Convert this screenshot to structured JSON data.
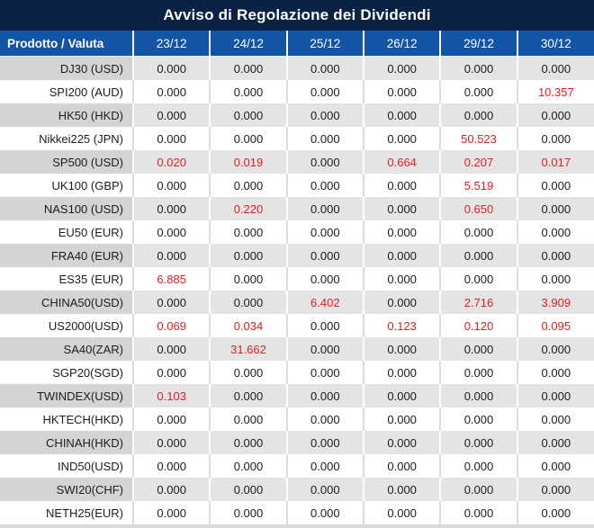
{
  "title": "Avviso di Regolazione dei Dividendi",
  "colors": {
    "title_bar_bg": "#0a2244",
    "header_bg": "#1254a6",
    "header_text": "#ffffff",
    "stripe_product_bg": "#d4d4d4",
    "stripe_cell_bg": "#e4e4e4",
    "plain_row_bg": "#ffffff",
    "value_text": "#1c1c1c",
    "nonzero_value_text": "#e02020",
    "grid_line_light": "#dcdcdc",
    "grid_line_white": "#ffffff"
  },
  "table": {
    "product_header": "Prodotto / Valuta",
    "date_headers": [
      "23/12",
      "24/12",
      "25/12",
      "26/12",
      "29/12",
      "30/12"
    ],
    "zero_value": "0.000",
    "rows": [
      {
        "product": "DJ30 (USD)",
        "values": [
          "0.000",
          "0.000",
          "0.000",
          "0.000",
          "0.000",
          "0.000"
        ]
      },
      {
        "product": "SPI200 (AUD)",
        "values": [
          "0.000",
          "0.000",
          "0.000",
          "0.000",
          "0.000",
          "10.357"
        ]
      },
      {
        "product": "HK50 (HKD)",
        "values": [
          "0.000",
          "0.000",
          "0.000",
          "0.000",
          "0.000",
          "0.000"
        ]
      },
      {
        "product": "Nikkei225 (JPN)",
        "values": [
          "0.000",
          "0.000",
          "0.000",
          "0.000",
          "50.523",
          "0.000"
        ]
      },
      {
        "product": "SP500 (USD)",
        "values": [
          "0.020",
          "0.019",
          "0.000",
          "0.664",
          "0.207",
          "0.017"
        ]
      },
      {
        "product": "UK100 (GBP)",
        "values": [
          "0.000",
          "0.000",
          "0.000",
          "0.000",
          "5.519",
          "0.000"
        ]
      },
      {
        "product": "NAS100 (USD)",
        "values": [
          "0.000",
          "0.220",
          "0.000",
          "0.000",
          "0.650",
          "0.000"
        ]
      },
      {
        "product": "EU50 (EUR)",
        "values": [
          "0.000",
          "0.000",
          "0.000",
          "0.000",
          "0.000",
          "0.000"
        ]
      },
      {
        "product": "FRA40 (EUR)",
        "values": [
          "0.000",
          "0.000",
          "0.000",
          "0.000",
          "0.000",
          "0.000"
        ]
      },
      {
        "product": "ES35 (EUR)",
        "values": [
          "6.885",
          "0.000",
          "0.000",
          "0.000",
          "0.000",
          "0.000"
        ]
      },
      {
        "product": "CHINA50(USD)",
        "values": [
          "0.000",
          "0.000",
          "6.402",
          "0.000",
          "2.716",
          "3.909"
        ]
      },
      {
        "product": "US2000(USD)",
        "values": [
          "0.069",
          "0.034",
          "0.000",
          "0.123",
          "0.120",
          "0.095"
        ]
      },
      {
        "product": "SA40(ZAR)",
        "values": [
          "0.000",
          "31.662",
          "0.000",
          "0.000",
          "0.000",
          "0.000"
        ]
      },
      {
        "product": "SGP20(SGD)",
        "values": [
          "0.000",
          "0.000",
          "0.000",
          "0.000",
          "0.000",
          "0.000"
        ]
      },
      {
        "product": "TWINDEX(USD)",
        "values": [
          "0.103",
          "0.000",
          "0.000",
          "0.000",
          "0.000",
          "0.000"
        ]
      },
      {
        "product": "HKTECH(HKD)",
        "values": [
          "0.000",
          "0.000",
          "0.000",
          "0.000",
          "0.000",
          "0.000"
        ]
      },
      {
        "product": "CHINAH(HKD)",
        "values": [
          "0.000",
          "0.000",
          "0.000",
          "0.000",
          "0.000",
          "0.000"
        ]
      },
      {
        "product": "IND50(USD)",
        "values": [
          "0.000",
          "0.000",
          "0.000",
          "0.000",
          "0.000",
          "0.000"
        ]
      },
      {
        "product": "SWI20(CHF)",
        "values": [
          "0.000",
          "0.000",
          "0.000",
          "0.000",
          "0.000",
          "0.000"
        ]
      },
      {
        "product": "NETH25(EUR)",
        "values": [
          "0.000",
          "0.000",
          "0.000",
          "0.000",
          "0.000",
          "0.000"
        ]
      }
    ]
  }
}
